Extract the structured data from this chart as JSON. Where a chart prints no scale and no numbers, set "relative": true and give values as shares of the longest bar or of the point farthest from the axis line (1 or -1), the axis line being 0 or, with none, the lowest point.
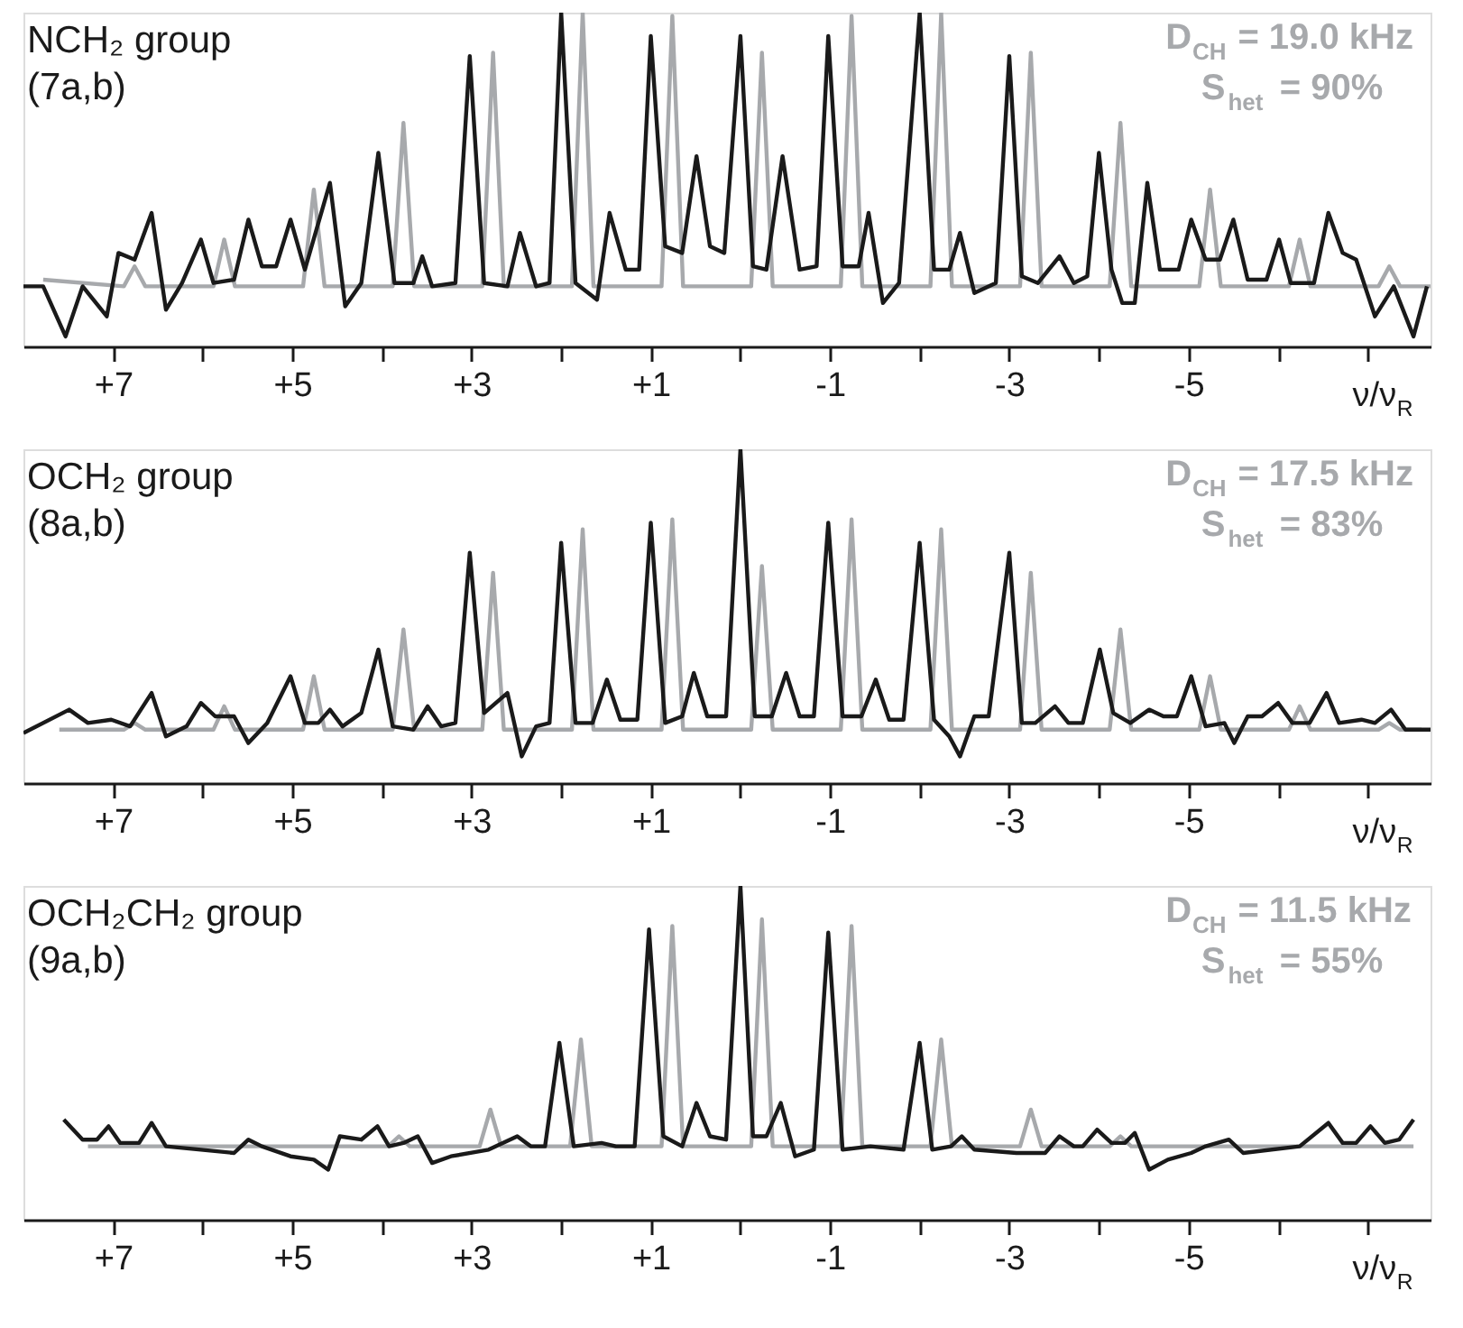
{
  "chart_data": [
    {
      "type": "line",
      "title": "NCH₂ group",
      "subtitle": "(7a,b)",
      "xlabel": "ν/ν$_{R}$",
      "annotations": [
        "D$_{CH}$ = 19.0 kHz",
        "S$_{het}$ = 90%"
      ],
      "relative": true,
      "xlim": [
        8.0,
        -7.7
      ],
      "xticks": [
        {
          "value": 7,
          "label": "+7"
        },
        {
          "value": 6,
          "label": null
        },
        {
          "value": 5,
          "label": "+5"
        },
        {
          "value": 4,
          "label": null
        },
        {
          "value": 3,
          "label": "+3"
        },
        {
          "value": 2,
          "label": null
        },
        {
          "value": 1,
          "label": "+1"
        },
        {
          "value": 0,
          "label": null
        },
        -1,
        {
          "value": -2,
          "label": null
        },
        -3,
        {
          "value": -4,
          "label": null
        },
        -5,
        {
          "value": -6,
          "label": null
        },
        {
          "value": -7,
          "label": null
        }
      ],
      "series": [
        {
          "color": "#a7a9ac",
          "x": [
            7.78,
            6.88,
            6.76,
            6.64,
            5.88,
            5.76,
            5.64,
            4.88,
            4.76,
            4.64,
            3.88,
            3.76,
            3.64,
            2.88,
            2.76,
            2.64,
            1.88,
            1.76,
            1.64,
            0.88,
            0.76,
            0.64,
            -0.12,
            -0.24,
            -0.36,
            -1.12,
            -1.24,
            -1.36,
            -2.12,
            -2.24,
            -2.36,
            -3.12,
            -3.24,
            -3.36,
            -4.12,
            -4.24,
            -4.36,
            -5.12,
            -5.24,
            -5.36,
            -6.12,
            -6.24,
            -6.36,
            -7.12,
            -7.24,
            -7.36,
            -7.7
          ],
          "values": [
            0.2,
            0.18,
            0.24,
            0.18,
            0.18,
            0.32,
            0.18,
            0.18,
            0.47,
            0.18,
            0.18,
            0.67,
            0.18,
            0.18,
            0.88,
            0.18,
            0.18,
            1.0,
            0.18,
            0.18,
            0.99,
            0.18,
            0.18,
            0.88,
            0.18,
            0.18,
            0.99,
            0.18,
            0.18,
            1.0,
            0.18,
            0.18,
            0.88,
            0.18,
            0.18,
            0.67,
            0.18,
            0.18,
            0.47,
            0.18,
            0.18,
            0.32,
            0.18,
            0.18,
            0.24,
            0.18,
            0.18
          ]
        },
        {
          "color": "#1a1a1a",
          "x": [
            8.0,
            7.78,
            7.53,
            7.34,
            7.07,
            6.94,
            6.76,
            6.57,
            6.41,
            6.23,
            6.02,
            5.88,
            5.65,
            5.49,
            5.34,
            5.18,
            5.02,
            4.86,
            4.58,
            4.41,
            4.23,
            4.04,
            3.86,
            3.65,
            3.55,
            3.44,
            3.18,
            3.02,
            2.86,
            2.6,
            2.46,
            2.28,
            2.13,
            2.0,
            1.84,
            1.6,
            1.46,
            1.28,
            1.13,
            1.0,
            0.84,
            0.65,
            0.49,
            0.34,
            0.18,
            0.0,
            -0.14,
            -0.29,
            -0.47,
            -0.66,
            -0.85,
            -0.98,
            -1.14,
            -1.32,
            -1.43,
            -1.59,
            -1.77,
            -2.0,
            -2.16,
            -2.33,
            -2.45,
            -2.61,
            -2.85,
            -3.0,
            -3.14,
            -3.32,
            -3.56,
            -3.72,
            -3.87,
            -4.0,
            -4.14,
            -4.26,
            -4.4,
            -4.54,
            -4.68,
            -4.89,
            -5.03,
            -5.19,
            -5.35,
            -5.5,
            -5.66,
            -5.87,
            -6.01,
            -6.14,
            -6.4,
            -6.56,
            -6.72,
            -6.87,
            -7.08,
            -7.29,
            -7.51,
            -7.66
          ],
          "values": [
            0.18,
            0.18,
            0.03,
            0.18,
            0.09,
            0.28,
            0.26,
            0.4,
            0.11,
            0.19,
            0.32,
            0.19,
            0.2,
            0.38,
            0.24,
            0.24,
            0.38,
            0.23,
            0.49,
            0.12,
            0.19,
            0.58,
            0.19,
            0.19,
            0.27,
            0.18,
            0.19,
            0.87,
            0.19,
            0.18,
            0.34,
            0.18,
            0.19,
            1.0,
            0.19,
            0.14,
            0.4,
            0.23,
            0.23,
            0.93,
            0.3,
            0.28,
            0.57,
            0.3,
            0.28,
            0.93,
            0.24,
            0.23,
            0.57,
            0.23,
            0.24,
            0.93,
            0.24,
            0.24,
            0.4,
            0.13,
            0.19,
            1.0,
            0.23,
            0.23,
            0.34,
            0.16,
            0.19,
            0.87,
            0.21,
            0.19,
            0.27,
            0.19,
            0.21,
            0.58,
            0.23,
            0.13,
            0.13,
            0.49,
            0.23,
            0.23,
            0.38,
            0.26,
            0.26,
            0.38,
            0.2,
            0.2,
            0.32,
            0.19,
            0.19,
            0.4,
            0.28,
            0.26,
            0.09,
            0.18,
            0.03,
            0.18
          ]
        }
      ]
    },
    {
      "type": "line",
      "title": "OCH₂ group",
      "subtitle": "(8a,b)",
      "xlabel": "ν/ν$_{R}$",
      "annotations": [
        "D$_{CH}$ = 17.5 kHz",
        "S$_{het}$ = 83%"
      ],
      "relative": true,
      "xlim": [
        8.0,
        -7.7
      ],
      "xticks": [
        {
          "value": 7,
          "label": "+7"
        },
        {
          "value": 6,
          "label": null
        },
        {
          "value": 5,
          "label": "+5"
        },
        {
          "value": 4,
          "label": null
        },
        {
          "value": 3,
          "label": "+3"
        },
        {
          "value": 2,
          "label": null
        },
        {
          "value": 1,
          "label": "+1"
        },
        {
          "value": 0,
          "label": null
        },
        -1,
        {
          "value": -2,
          "label": null
        },
        -3,
        {
          "value": -4,
          "label": null
        },
        -5,
        {
          "value": -6,
          "label": null
        },
        {
          "value": -7,
          "label": null
        }
      ],
      "series": [
        {
          "color": "#a7a9ac",
          "x": [
            7.6,
            6.88,
            6.76,
            6.64,
            5.88,
            5.76,
            5.64,
            4.88,
            4.76,
            4.64,
            3.88,
            3.76,
            3.64,
            2.88,
            2.76,
            2.64,
            1.88,
            1.76,
            1.64,
            0.88,
            0.76,
            0.64,
            -0.12,
            -0.24,
            -0.36,
            -1.12,
            -1.24,
            -1.36,
            -2.12,
            -2.24,
            -2.36,
            -3.12,
            -3.24,
            -3.36,
            -4.12,
            -4.24,
            -4.36,
            -5.12,
            -5.24,
            -5.36,
            -6.12,
            -6.24,
            -6.36,
            -7.12,
            -7.24,
            -7.36,
            -7.6
          ],
          "values": [
            0.16,
            0.16,
            0.18,
            0.16,
            0.16,
            0.23,
            0.16,
            0.16,
            0.32,
            0.16,
            0.16,
            0.46,
            0.16,
            0.16,
            0.63,
            0.16,
            0.16,
            0.76,
            0.16,
            0.16,
            0.79,
            0.16,
            0.16,
            0.65,
            0.16,
            0.16,
            0.79,
            0.16,
            0.16,
            0.76,
            0.16,
            0.16,
            0.63,
            0.16,
            0.16,
            0.46,
            0.16,
            0.16,
            0.32,
            0.16,
            0.16,
            0.23,
            0.16,
            0.16,
            0.18,
            0.16,
            0.16
          ]
        },
        {
          "color": "#1a1a1a",
          "x": [
            8.0,
            7.49,
            7.28,
            7.02,
            6.81,
            6.57,
            6.41,
            6.18,
            6.02,
            5.86,
            5.65,
            5.49,
            5.28,
            5.02,
            4.86,
            4.71,
            4.58,
            4.44,
            4.23,
            4.04,
            3.88,
            3.65,
            3.49,
            3.34,
            3.18,
            3.02,
            2.86,
            2.6,
            2.44,
            2.28,
            2.13,
            2.0,
            1.84,
            1.65,
            1.49,
            1.34,
            1.15,
            1.0,
            0.84,
            0.65,
            0.52,
            0.37,
            0.16,
            0.0,
            -0.16,
            -0.35,
            -0.51,
            -0.66,
            -0.82,
            -0.98,
            -1.14,
            -1.35,
            -1.51,
            -1.66,
            -1.82,
            -2.0,
            -2.16,
            -2.33,
            -2.45,
            -2.61,
            -2.77,
            -3.0,
            -3.14,
            -3.29,
            -3.51,
            -3.66,
            -3.82,
            -4.01,
            -4.16,
            -4.35,
            -4.56,
            -4.72,
            -4.87,
            -5.03,
            -5.19,
            -5.4,
            -5.51,
            -5.66,
            -5.82,
            -6.0,
            -6.16,
            -6.35,
            -6.54,
            -6.68,
            -6.93,
            -7.08,
            -7.26,
            -7.42,
            -7.7
          ],
          "values": [
            0.15,
            0.22,
            0.18,
            0.19,
            0.17,
            0.27,
            0.14,
            0.17,
            0.24,
            0.2,
            0.2,
            0.12,
            0.18,
            0.32,
            0.18,
            0.18,
            0.22,
            0.17,
            0.21,
            0.4,
            0.17,
            0.16,
            0.23,
            0.17,
            0.18,
            0.69,
            0.21,
            0.27,
            0.08,
            0.17,
            0.18,
            0.72,
            0.18,
            0.18,
            0.31,
            0.19,
            0.19,
            0.78,
            0.18,
            0.2,
            0.33,
            0.2,
            0.2,
            1.0,
            0.2,
            0.2,
            0.33,
            0.2,
            0.2,
            0.78,
            0.2,
            0.2,
            0.31,
            0.19,
            0.19,
            0.72,
            0.19,
            0.14,
            0.08,
            0.2,
            0.2,
            0.69,
            0.18,
            0.18,
            0.23,
            0.18,
            0.18,
            0.4,
            0.21,
            0.18,
            0.22,
            0.2,
            0.2,
            0.32,
            0.17,
            0.18,
            0.12,
            0.2,
            0.2,
            0.24,
            0.18,
            0.18,
            0.27,
            0.18,
            0.19,
            0.18,
            0.22,
            0.16,
            0.16
          ]
        }
      ]
    },
    {
      "type": "line",
      "title": "OCH₂CH₂ group",
      "subtitle": "(9a,b)",
      "xlabel": "ν/ν$_{R}$",
      "annotations": [
        "D$_{CH}$ = 11.5 kHz",
        "S$_{het}$ = 55%"
      ],
      "relative": true,
      "xlim": [
        8.0,
        -7.7
      ],
      "xticks": [
        {
          "value": 7,
          "label": "+7"
        },
        {
          "value": 6,
          "label": null
        },
        {
          "value": 5,
          "label": "+5"
        },
        {
          "value": 4,
          "label": null
        },
        {
          "value": 3,
          "label": "+3"
        },
        {
          "value": 2,
          "label": null
        },
        {
          "value": 1,
          "label": "+1"
        },
        {
          "value": 0,
          "label": null
        },
        -1,
        {
          "value": -2,
          "label": null
        },
        -3,
        {
          "value": -4,
          "label": null
        },
        -5,
        {
          "value": -6,
          "label": null
        },
        {
          "value": -7,
          "label": null
        }
      ],
      "series": [
        {
          "color": "#a7a9ac",
          "x": [
            7.28,
            3.93,
            3.81,
            3.69,
            2.91,
            2.79,
            2.67,
            1.9,
            1.78,
            1.66,
            0.88,
            0.76,
            0.64,
            -0.12,
            -0.24,
            -0.36,
            -1.12,
            -1.24,
            -1.36,
            -2.12,
            -2.24,
            -2.36,
            -3.12,
            -3.24,
            -3.36,
            -4.12,
            -4.24,
            -4.36,
            -7.51
          ],
          "values": [
            0.22,
            0.22,
            0.25,
            0.22,
            0.22,
            0.33,
            0.22,
            0.22,
            0.54,
            0.22,
            0.22,
            0.88,
            0.22,
            0.22,
            0.9,
            0.22,
            0.22,
            0.88,
            0.22,
            0.22,
            0.54,
            0.22,
            0.22,
            0.33,
            0.22,
            0.22,
            0.25,
            0.22,
            0.22
          ]
        },
        {
          "color": "#1a1a1a",
          "x": [
            7.55,
            7.34,
            7.18,
            7.05,
            6.92,
            6.71,
            6.57,
            6.41,
            5.65,
            5.49,
            5.34,
            5.02,
            4.76,
            4.6,
            4.47,
            4.23,
            4.05,
            3.92,
            3.76,
            3.6,
            3.44,
            3.23,
            2.81,
            2.49,
            2.34,
            2.18,
            2.02,
            1.86,
            1.55,
            1.39,
            1.18,
            1.02,
            0.86,
            0.65,
            0.49,
            0.34,
            0.16,
            0.0,
            -0.14,
            -0.29,
            -0.45,
            -0.61,
            -0.82,
            -0.98,
            -1.14,
            -1.45,
            -1.82,
            -2.0,
            -2.14,
            -2.35,
            -2.47,
            -2.61,
            -3.08,
            -3.4,
            -3.56,
            -3.72,
            -3.82,
            -3.98,
            -4.14,
            -4.29,
            -4.4,
            -4.56,
            -4.77,
            -5.03,
            -5.19,
            -5.45,
            -5.61,
            -6.24,
            -6.56,
            -6.72,
            -6.87,
            -7.03,
            -7.19,
            -7.35,
            -7.51
          ],
          "values": [
            0.3,
            0.24,
            0.24,
            0.28,
            0.23,
            0.23,
            0.29,
            0.22,
            0.2,
            0.24,
            0.22,
            0.19,
            0.18,
            0.15,
            0.25,
            0.24,
            0.28,
            0.22,
            0.23,
            0.25,
            0.17,
            0.19,
            0.21,
            0.25,
            0.22,
            0.22,
            0.53,
            0.22,
            0.23,
            0.22,
            0.22,
            0.87,
            0.25,
            0.22,
            0.35,
            0.25,
            0.24,
            1.0,
            0.25,
            0.25,
            0.35,
            0.19,
            0.21,
            0.86,
            0.21,
            0.22,
            0.21,
            0.53,
            0.21,
            0.22,
            0.25,
            0.21,
            0.2,
            0.2,
            0.25,
            0.22,
            0.22,
            0.27,
            0.23,
            0.23,
            0.26,
            0.15,
            0.18,
            0.2,
            0.22,
            0.24,
            0.2,
            0.22,
            0.29,
            0.23,
            0.23,
            0.28,
            0.23,
            0.24,
            0.3
          ]
        }
      ]
    }
  ]
}
